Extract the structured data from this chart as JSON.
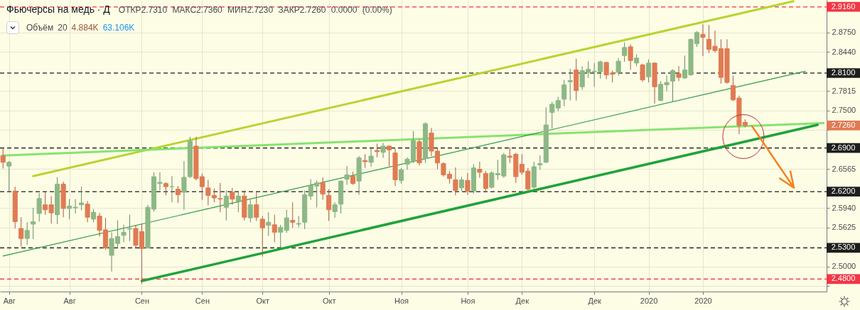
{
  "chart_data": {
    "type": "candlestick",
    "title": "Фьючерсы на медь · Д",
    "subtitle": "ОТКР2.7310 МАКС2.7360 МИН2.7230 ЗАКР2.7260 0.0000 (0.00%)",
    "annotations": [
      "Объём 20 4.884K 63.106K",
      "2.7260"
    ],
    "categories": [
      null,
      "Авг",
      null,
      null,
      null,
      null,
      null,
      null,
      null,
      null,
      null,
      "Авг",
      null,
      null,
      null,
      null,
      null,
      null,
      null,
      null,
      null,
      null,
      null,
      "Сен",
      null,
      null,
      null,
      null,
      null,
      null,
      null,
      null,
      null,
      "Сен",
      null,
      null,
      null,
      null,
      null,
      null,
      null,
      null,
      null,
      "Окт",
      null,
      null,
      null,
      null,
      null,
      null,
      null,
      null,
      null,
      null,
      "Окт",
      null,
      null,
      null,
      null,
      null,
      null,
      null,
      null,
      null,
      null,
      null,
      "Ноя",
      null,
      null,
      null,
      null,
      null,
      null,
      null,
      null,
      null,
      null,
      "Ноя",
      null,
      null,
      null,
      null,
      null,
      null,
      null,
      null,
      "Дек",
      null,
      null,
      null,
      null,
      null,
      null,
      null,
      null,
      null,
      null,
      null,
      "Дек",
      null,
      null,
      null,
      null,
      null,
      null,
      null,
      null,
      "2020",
      null,
      null,
      null,
      null,
      null,
      null,
      null,
      null,
      "2020",
      null,
      null,
      null,
      null,
      null,
      null,
      null,
      null,
      null,
      null,
      null,
      null,
      null,
      null,
      null,
      null,
      null,
      null,
      null,
      null
    ],
    "ohlc": [
      [
        2.678,
        2.691,
        2.657,
        2.667
      ],
      [
        2.661,
        2.669,
        2.62,
        2.667
      ],
      [
        2.621,
        2.628,
        2.561,
        2.572
      ],
      [
        2.561,
        2.579,
        2.532,
        2.545
      ],
      [
        2.545,
        2.571,
        2.535,
        2.558
      ],
      [
        2.568,
        2.594,
        2.544,
        2.572
      ],
      [
        2.585,
        2.618,
        2.572,
        2.609
      ],
      [
        2.599,
        2.619,
        2.583,
        2.591
      ],
      [
        2.599,
        2.613,
        2.569,
        2.586
      ],
      [
        2.583,
        2.643,
        2.568,
        2.632
      ],
      [
        2.632,
        2.636,
        2.579,
        2.593
      ],
      [
        2.593,
        2.608,
        2.576,
        2.597
      ],
      [
        2.594,
        2.608,
        2.585,
        2.595
      ],
      [
        2.599,
        2.628,
        2.59,
        2.602
      ],
      [
        2.6,
        2.605,
        2.571,
        2.579
      ],
      [
        2.576,
        2.592,
        2.571,
        2.587
      ],
      [
        2.581,
        2.586,
        2.548,
        2.558
      ],
      [
        2.559,
        2.578,
        2.527,
        2.53
      ],
      [
        2.518,
        2.555,
        2.492,
        2.545
      ],
      [
        2.537,
        2.574,
        2.53,
        2.548
      ],
      [
        2.55,
        2.567,
        2.539,
        2.555
      ],
      [
        2.56,
        2.583,
        2.541,
        2.561
      ],
      [
        2.561,
        2.567,
        2.53,
        2.534
      ],
      [
        2.556,
        2.569,
        2.472,
        2.529
      ],
      [
        2.53,
        2.599,
        2.529,
        2.595
      ],
      [
        2.592,
        2.651,
        2.588,
        2.644
      ],
      [
        2.633,
        2.651,
        2.622,
        2.635
      ],
      [
        2.633,
        2.635,
        2.614,
        2.628
      ],
      [
        2.628,
        2.645,
        2.603,
        2.628
      ],
      [
        2.624,
        2.629,
        2.602,
        2.615
      ],
      [
        2.619,
        2.669,
        2.591,
        2.643
      ],
      [
        2.644,
        2.708,
        2.642,
        2.701
      ],
      [
        2.693,
        2.708,
        2.638,
        2.641
      ],
      [
        2.644,
        2.649,
        2.607,
        2.628
      ],
      [
        2.626,
        2.639,
        2.598,
        2.614
      ],
      [
        2.614,
        2.625,
        2.603,
        2.61
      ],
      [
        2.609,
        2.634,
        2.587,
        2.608
      ],
      [
        2.595,
        2.622,
        2.574,
        2.613
      ],
      [
        2.619,
        2.626,
        2.599,
        2.608
      ],
      [
        2.605,
        2.619,
        2.587,
        2.613
      ],
      [
        2.613,
        2.622,
        2.574,
        2.579
      ],
      [
        2.578,
        2.607,
        2.571,
        2.599
      ],
      [
        2.599,
        2.621,
        2.573,
        2.579
      ],
      [
        2.576,
        2.581,
        2.516,
        2.562
      ],
      [
        2.566,
        2.587,
        2.549,
        2.571
      ],
      [
        2.567,
        2.583,
        2.539,
        2.555
      ],
      [
        2.555,
        2.567,
        2.53,
        2.563
      ],
      [
        2.558,
        2.591,
        2.554,
        2.578
      ],
      [
        2.574,
        2.603,
        2.562,
        2.571
      ],
      [
        2.568,
        2.581,
        2.563,
        2.569
      ],
      [
        2.571,
        2.622,
        2.56,
        2.615
      ],
      [
        2.613,
        2.64,
        2.607,
        2.63
      ],
      [
        2.629,
        2.638,
        2.595,
        2.634
      ],
      [
        2.634,
        2.643,
        2.607,
        2.616
      ],
      [
        2.614,
        2.624,
        2.573,
        2.591
      ],
      [
        2.588,
        2.603,
        2.578,
        2.599
      ],
      [
        2.6,
        2.638,
        2.585,
        2.637
      ],
      [
        2.64,
        2.661,
        2.631,
        2.647
      ],
      [
        2.645,
        2.652,
        2.631,
        2.633
      ],
      [
        2.637,
        2.677,
        2.615,
        2.674
      ],
      [
        2.67,
        2.68,
        2.658,
        2.668
      ],
      [
        2.667,
        2.689,
        2.66,
        2.677
      ],
      [
        2.686,
        2.697,
        2.675,
        2.684
      ],
      [
        2.683,
        2.698,
        2.674,
        2.693
      ],
      [
        2.693,
        2.694,
        2.661,
        2.687
      ],
      [
        2.682,
        2.689,
        2.629,
        2.639
      ],
      [
        2.638,
        2.658,
        2.633,
        2.655
      ],
      [
        2.664,
        2.675,
        2.655,
        2.672
      ],
      [
        2.669,
        2.717,
        2.666,
        2.702
      ],
      [
        2.7,
        2.704,
        2.662,
        2.666
      ],
      [
        2.673,
        2.731,
        2.666,
        2.729
      ],
      [
        2.714,
        2.722,
        2.677,
        2.685
      ],
      [
        2.685,
        2.689,
        2.656,
        2.666
      ],
      [
        2.665,
        2.667,
        2.644,
        2.647
      ],
      [
        2.648,
        2.653,
        2.633,
        2.641
      ],
      [
        2.639,
        2.659,
        2.614,
        2.622
      ],
      [
        2.626,
        2.644,
        2.621,
        2.639
      ],
      [
        2.638,
        2.65,
        2.615,
        2.621
      ],
      [
        2.621,
        2.664,
        2.617,
        2.658
      ],
      [
        2.656,
        2.668,
        2.642,
        2.651
      ],
      [
        2.649,
        2.653,
        2.621,
        2.625
      ],
      [
        2.627,
        2.653,
        2.625,
        2.65
      ],
      [
        2.647,
        2.671,
        2.639,
        2.649
      ],
      [
        2.645,
        2.682,
        2.642,
        2.679
      ],
      [
        2.677,
        2.691,
        2.666,
        2.675
      ],
      [
        2.68,
        2.682,
        2.634,
        2.644
      ],
      [
        2.664,
        2.68,
        2.647,
        2.651
      ],
      [
        2.653,
        2.658,
        2.622,
        2.624
      ],
      [
        2.627,
        2.668,
        2.625,
        2.66
      ],
      [
        2.663,
        2.678,
        2.655,
        2.665
      ],
      [
        2.667,
        2.755,
        2.666,
        2.727
      ],
      [
        2.747,
        2.764,
        2.721,
        2.76
      ],
      [
        2.754,
        2.772,
        2.749,
        2.766
      ],
      [
        2.768,
        2.799,
        2.757,
        2.791
      ],
      [
        2.796,
        2.817,
        2.766,
        2.798
      ],
      [
        2.815,
        2.833,
        2.766,
        2.782
      ],
      [
        2.788,
        2.821,
        2.783,
        2.814
      ],
      [
        2.811,
        2.829,
        2.802,
        2.816
      ],
      [
        2.812,
        2.826,
        2.788,
        2.813
      ],
      [
        2.812,
        2.83,
        2.801,
        2.828
      ],
      [
        2.827,
        2.828,
        2.8,
        2.807
      ],
      [
        2.81,
        2.814,
        2.795,
        2.808
      ],
      [
        2.811,
        2.834,
        2.806,
        2.829
      ],
      [
        2.838,
        2.859,
        2.828,
        2.851
      ],
      [
        2.852,
        2.856,
        2.815,
        2.83
      ],
      [
        2.826,
        2.84,
        2.821,
        2.834
      ],
      [
        2.823,
        2.825,
        2.796,
        2.799
      ],
      [
        2.804,
        2.832,
        2.795,
        2.826
      ],
      [
        2.826,
        2.827,
        2.761,
        2.788
      ],
      [
        2.766,
        2.797,
        2.765,
        2.792
      ],
      [
        2.791,
        2.806,
        2.781,
        2.795
      ],
      [
        2.797,
        2.816,
        2.764,
        2.814
      ],
      [
        2.809,
        2.821,
        2.797,
        2.803
      ],
      [
        2.802,
        2.838,
        2.801,
        2.815
      ],
      [
        2.807,
        2.865,
        2.806,
        2.864
      ],
      [
        2.857,
        2.877,
        2.852,
        2.875
      ],
      [
        2.872,
        2.888,
        2.837,
        2.867
      ],
      [
        2.864,
        2.887,
        2.842,
        2.848
      ],
      [
        2.853,
        2.878,
        2.843,
        2.846
      ],
      [
        2.849,
        2.864,
        2.793,
        2.803
      ],
      [
        2.849,
        2.864,
        2.793,
        2.795
      ],
      [
        2.79,
        2.806,
        2.765,
        2.767
      ],
      [
        2.77,
        2.774,
        2.712,
        2.726
      ],
      [
        2.731,
        2.736,
        2.723,
        2.726
      ],
      null,
      null,
      null,
      null,
      null,
      null,
      null,
      null,
      null,
      null,
      null,
      null,
      null
    ],
    "colors": [
      "#e07b53",
      "#8db886",
      "#e07b53",
      "#e07b53",
      "#8db886",
      "#8db886",
      "#8db886",
      "#e07b53",
      "#e07b53",
      "#8db886",
      "#e07b53",
      "#8db886",
      "#8db886",
      "#8db886",
      "#e07b53",
      "#8db886",
      "#e07b53",
      "#e07b53",
      "#8db886",
      "#8db886",
      "#8db886",
      "#8db886",
      "#e07b53",
      "#e07b53",
      "#8db886",
      "#8db886",
      "#8db886",
      "#e07b53",
      "#8db886",
      "#e07b53",
      "#8db886",
      "#8db886",
      "#e07b53",
      "#e07b53",
      "#e07b53",
      "#e07b53",
      "#e07b53",
      "#8db886",
      "#e07b53",
      "#8db886",
      "#e07b53",
      "#8db886",
      "#e07b53",
      "#e07b53",
      "#8db886",
      "#e07b53",
      "#8db886",
      "#8db886",
      "#e07b53",
      "#8db886",
      "#8db886",
      "#8db886",
      "#8db886",
      "#e07b53",
      "#e07b53",
      "#8db886",
      "#8db886",
      "#8db886",
      "#e07b53",
      "#8db886",
      "#e07b53",
      "#8db886",
      "#e07b53",
      "#8db886",
      "#e07b53",
      "#e07b53",
      "#8db886",
      "#8db886",
      "#8db886",
      "#e07b53",
      "#8db886",
      "#e07b53",
      "#e07b53",
      "#e07b53",
      "#e07b53",
      "#e07b53",
      "#8db886",
      "#e07b53",
      "#8db886",
      "#e07b53",
      "#e07b53",
      "#8db886",
      "#8db886",
      "#8db886",
      "#e07b53",
      "#e07b53",
      "#e07b53",
      "#e07b53",
      "#8db886",
      "#8db886",
      "#8db886",
      "#8db886",
      "#8db886",
      "#8db886",
      "#8db886",
      "#e07b53",
      "#8db886",
      "#8db886",
      "#8db886",
      "#8db886",
      "#e07b53",
      "#e07b53",
      "#8db886",
      "#8db886",
      "#e07b53",
      "#8db886",
      "#e07b53",
      "#8db886",
      "#e07b53",
      "#8db886",
      "#8db886",
      "#8db886",
      "#e07b53",
      "#8db886",
      "#8db886",
      "#8db886",
      "#e07b53",
      "#e07b53",
      "#e07b53",
      "#e07b53",
      "#e07b53",
      "#e07b53",
      "#e07b53",
      "#e07b53",
      null,
      null,
      null,
      null,
      null,
      null,
      null,
      null,
      null,
      null,
      null,
      null,
      null
    ],
    "series": [
      {
        "type": "line",
        "color": "#b8d432",
        "values": [
          null,
          null,
          null,
          null,
          null,
          2.645,
          null,
          null,
          null,
          null,
          null,
          null,
          null,
          null,
          null,
          null,
          null,
          null,
          null,
          null,
          null,
          null,
          null,
          null,
          null,
          null,
          null,
          null,
          null,
          null,
          null,
          null,
          null,
          null,
          null,
          null,
          null,
          null,
          null,
          null,
          null,
          null,
          null,
          null,
          null,
          null,
          null,
          null,
          null,
          null,
          null,
          null,
          null,
          null,
          null,
          null,
          null,
          null,
          null,
          null,
          null,
          null,
          null,
          null,
          null,
          null,
          null,
          null,
          null,
          null,
          null,
          null,
          null,
          null,
          null,
          null,
          null,
          null,
          null,
          null,
          null,
          null,
          null,
          null,
          null,
          null,
          null,
          null,
          null,
          null,
          null,
          null,
          null,
          null,
          null,
          null,
          null,
          null,
          null,
          null,
          null,
          null,
          null,
          null,
          null,
          null,
          null,
          null,
          null,
          null,
          null,
          null,
          null,
          null,
          null,
          null,
          null,
          null,
          null,
          null,
          null,
          null,
          null,
          null,
          null,
          null,
          null,
          null,
          null,
          null,
          null,
          2.925,
          null,
          null,
          null,
          null,
          null
        ]
      },
      {
        "type": "line",
        "color": "#86e36f",
        "values": [
          2.678,
          null,
          null,
          null,
          null,
          null,
          null,
          null,
          null,
          null,
          null,
          null,
          null,
          null,
          null,
          null,
          null,
          null,
          null,
          null,
          null,
          null,
          null,
          null,
          null,
          null,
          null,
          null,
          null,
          null,
          null,
          null,
          null,
          null,
          null,
          null,
          null,
          null,
          null,
          null,
          null,
          null,
          null,
          null,
          null,
          null,
          null,
          null,
          null,
          null,
          null,
          null,
          null,
          null,
          null,
          null,
          null,
          null,
          null,
          null,
          null,
          null,
          null,
          null,
          null,
          null,
          null,
          null,
          null,
          null,
          null,
          null,
          null,
          null,
          null,
          null,
          null,
          null,
          null,
          null,
          null,
          null,
          null,
          null,
          null,
          null,
          null,
          null,
          null,
          null,
          null,
          null,
          null,
          null,
          null,
          null,
          null,
          null,
          null,
          null,
          null,
          null,
          null,
          null,
          null,
          null,
          null,
          null,
          null,
          null,
          null,
          null,
          null,
          null,
          null,
          null,
          null,
          null,
          null,
          null,
          null,
          null,
          null,
          null,
          null,
          null,
          null,
          null,
          null,
          null,
          null,
          null,
          null,
          null,
          null,
          null,
          2.73
        ]
      },
      {
        "type": "line",
        "color": "#2f9b3f",
        "values": [
          2.517,
          null,
          null,
          null,
          null,
          null,
          null,
          null,
          null,
          null,
          null,
          null,
          null,
          null,
          null,
          null,
          null,
          null,
          null,
          null,
          null,
          null,
          null,
          null,
          null,
          null,
          null,
          null,
          null,
          null,
          null,
          null,
          null,
          null,
          null,
          null,
          null,
          null,
          null,
          null,
          null,
          null,
          null,
          null,
          null,
          null,
          null,
          null,
          null,
          null,
          null,
          null,
          null,
          null,
          null,
          null,
          null,
          null,
          null,
          null,
          null,
          null,
          null,
          null,
          null,
          null,
          null,
          null,
          null,
          null,
          null,
          null,
          null,
          null,
          null,
          null,
          null,
          null,
          null,
          null,
          null,
          null,
          null,
          null,
          null,
          null,
          null,
          null,
          null,
          null,
          null,
          null,
          null,
          null,
          null,
          null,
          null,
          null,
          null,
          null,
          null,
          null,
          null,
          null,
          null,
          null,
          null,
          null,
          null,
          null,
          null,
          null,
          null,
          null,
          null,
          null,
          null,
          null,
          null,
          null,
          null,
          null,
          null,
          null,
          null,
          null,
          null,
          null,
          null,
          null,
          null,
          null,
          null,
          2.813,
          null,
          null,
          null
        ]
      },
      {
        "type": "line",
        "color": "#1fa33a",
        "values": [
          null,
          null,
          null,
          null,
          null,
          null,
          null,
          null,
          null,
          null,
          null,
          null,
          null,
          null,
          null,
          null,
          null,
          null,
          null,
          null,
          null,
          null,
          null,
          2.477,
          null,
          null,
          null,
          null,
          null,
          null,
          null,
          null,
          null,
          null,
          null,
          null,
          null,
          null,
          null,
          null,
          null,
          null,
          null,
          null,
          null,
          null,
          null,
          null,
          null,
          null,
          null,
          null,
          null,
          null,
          null,
          null,
          null,
          null,
          null,
          null,
          null,
          null,
          null,
          null,
          null,
          null,
          null,
          null,
          null,
          null,
          null,
          null,
          null,
          null,
          null,
          null,
          null,
          null,
          null,
          null,
          null,
          null,
          null,
          null,
          null,
          null,
          null,
          null,
          null,
          null,
          null,
          null,
          null,
          null,
          null,
          null,
          null,
          null,
          null,
          null,
          null,
          null,
          null,
          null,
          null,
          null,
          null,
          null,
          null,
          null,
          null,
          null,
          null,
          null,
          null,
          null,
          null,
          null,
          null,
          null,
          null,
          null,
          null,
          null,
          null,
          null,
          null,
          null,
          null,
          null,
          null,
          null,
          null,
          null,
          null,
          2.727,
          null
        ]
      }
    ],
    "ylim": [
      2.46,
      2.927
    ],
    "yticks": [
      {
        "value": 2.469,
        "label": null
      },
      {
        "value": 2.5,
        "label": "2.5000"
      },
      {
        "value": 2.5625,
        "label": "2.5625"
      },
      {
        "value": 2.594,
        "label": "2.5940"
      },
      {
        "value": 2.6565,
        "label": "2.6565"
      },
      {
        "value": 2.719,
        "label": null
      },
      {
        "value": 2.75,
        "label": "2.7500"
      },
      {
        "value": 2.7815,
        "label": "2.7815"
      },
      {
        "value": 2.844,
        "label": "2.8440"
      },
      {
        "value": 2.875,
        "label": "2.8750"
      }
    ],
    "grid": true,
    "ref_lines": [
      {
        "axis": "y",
        "value": 2.916,
        "label": "2.9160",
        "color": "#f23645",
        "line_style": "dashed"
      },
      {
        "axis": "y",
        "value": 2.81,
        "label": "2.8100",
        "color": "#1e1e1e",
        "line_style": "dashed"
      },
      {
        "axis": "y",
        "value": 2.69,
        "label": "2.6900",
        "color": "#1e1e1e",
        "line_style": "dashed"
      },
      {
        "axis": "y",
        "value": 2.62,
        "label": "2.6200",
        "color": "#1e1e1e",
        "line_style": "dashed"
      },
      {
        "axis": "y",
        "value": 2.53,
        "label": "2.5300",
        "color": "#1e1e1e",
        "line_style": "dashed"
      },
      {
        "axis": "y",
        "value": 2.48,
        "label": "2.4800",
        "color": "#f23645",
        "line_style": "dashed"
      }
    ]
  }
}
